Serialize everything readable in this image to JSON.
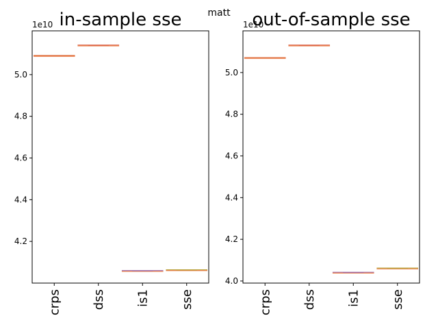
{
  "figure": {
    "suptitle": "matt"
  },
  "chart_data": [
    {
      "type": "box",
      "title": "in-sample sse",
      "categories": [
        "crps",
        "dss",
        "is1",
        "sse"
      ],
      "values": [
        50900000000,
        51400000000,
        40580000000,
        40620000000
      ],
      "ylim": [
        40000000000,
        52100000000
      ],
      "yticks": [
        42000000000,
        44000000000,
        46000000000,
        48000000000,
        50000000000
      ],
      "ytick_labels": [
        "4.2",
        "4.4",
        "4.6",
        "4.8",
        "5.0"
      ],
      "y_offset_label": "1e10",
      "colors": [
        "#e07b50",
        "#d9624a",
        "#9a6bb0",
        "#b5a53a"
      ],
      "grid": false
    },
    {
      "type": "box",
      "title": "out-of-sample sse",
      "categories": [
        "crps",
        "dss",
        "is1",
        "sse"
      ],
      "values": [
        50700000000,
        51300000000,
        40400000000,
        40600000000
      ],
      "ylim": [
        39900000000,
        52000000000
      ],
      "yticks": [
        40000000000,
        42000000000,
        44000000000,
        46000000000,
        48000000000,
        50000000000
      ],
      "ytick_labels": [
        "4.0",
        "4.2",
        "4.4",
        "4.6",
        "4.8",
        "5.0"
      ],
      "y_offset_label": "1e10",
      "colors": [
        "#e07b50",
        "#d9624a",
        "#9a6bb0",
        "#b5a53a"
      ],
      "grid": false
    }
  ]
}
